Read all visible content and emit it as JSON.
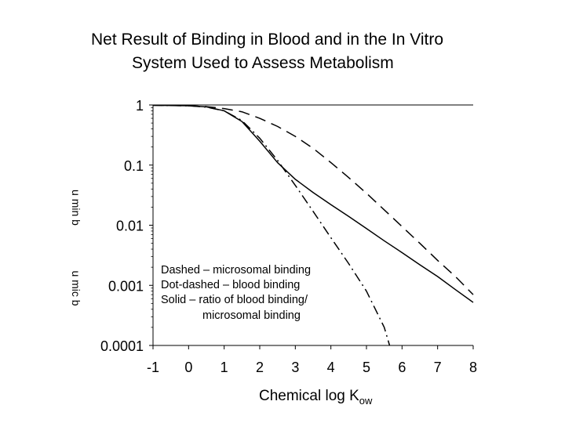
{
  "title": {
    "line1": "Net Result of Binding in Blood and in the In Vitro",
    "line2": "System Used to Assess Metabolism"
  },
  "chart_data": {
    "type": "line",
    "y_scale": "log",
    "xlabel_main": "Chemical log K",
    "xlabel_sub": "ow",
    "ylabels": [
      "u mic b",
      "u min b"
    ],
    "x_ticks": [
      "-1",
      "0",
      "1",
      "2",
      "3",
      "4",
      "5",
      "6",
      "7",
      "8"
    ],
    "y_ticks": [
      "1",
      "0.1",
      "0.01",
      "0.001",
      "0.0001"
    ],
    "xlim": [
      -1,
      8
    ],
    "ylim": [
      0.0001,
      1
    ],
    "grid": false,
    "legend": [
      "Dashed – microsomal binding",
      "Dot-dashed – blood binding",
      "Solid – ratio of blood binding/",
      "microsomal binding"
    ],
    "series": [
      {
        "style": "dashed",
        "x": [
          -1,
          0,
          0.5,
          1,
          1.5,
          2,
          2.5,
          3,
          3.5,
          4,
          4.5,
          5,
          5.5,
          6,
          6.5,
          7,
          7.5,
          8
        ],
        "y": [
          0.99,
          0.97,
          0.94,
          0.87,
          0.77,
          0.6,
          0.44,
          0.3,
          0.19,
          0.11,
          0.062,
          0.034,
          0.018,
          0.0095,
          0.005,
          0.0026,
          0.0014,
          0.0007
        ]
      },
      {
        "style": "dot-dashed",
        "x": [
          -1,
          0,
          0.5,
          1,
          1.5,
          2,
          2.5,
          3,
          3.5,
          4,
          4.5,
          5,
          5.5,
          5.65
        ],
        "y": [
          0.99,
          0.97,
          0.92,
          0.8,
          0.55,
          0.28,
          0.12,
          0.046,
          0.017,
          0.0062,
          0.0023,
          0.0008,
          0.0002,
          0.0001
        ]
      },
      {
        "style": "solid",
        "x": [
          -1,
          0,
          0.5,
          1,
          1.5,
          2,
          2.5,
          3,
          3.5,
          4,
          4.5,
          5,
          5.5,
          6,
          6.5,
          7,
          7.5,
          8
        ],
        "y": [
          0.99,
          0.97,
          0.93,
          0.8,
          0.53,
          0.25,
          0.11,
          0.058,
          0.035,
          0.022,
          0.014,
          0.0088,
          0.0055,
          0.0035,
          0.0022,
          0.0014,
          0.00085,
          0.00052
        ]
      }
    ]
  }
}
